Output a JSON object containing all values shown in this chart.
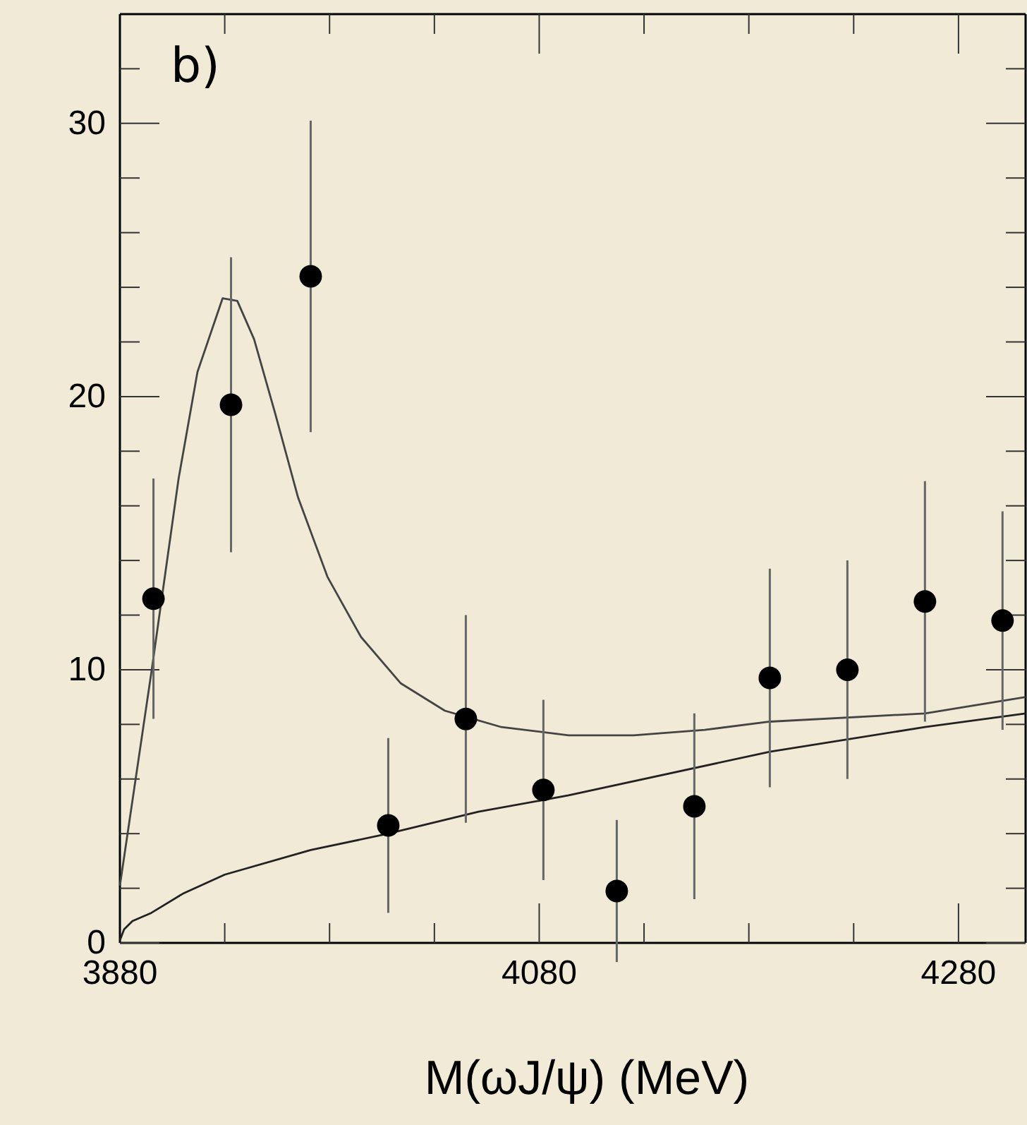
{
  "chart_data": {
    "type": "scatter",
    "xlabel": "M(ωJ/ψ) (MeV)",
    "annotations": [
      "b)"
    ],
    "xlim": [
      3880,
      4312
    ],
    "ylim": [
      0,
      34
    ],
    "xticks": [
      3880,
      {
        "value": 3930,
        "label": null
      },
      {
        "value": 3980,
        "label": null
      },
      {
        "value": 4030,
        "label": null
      },
      4080,
      {
        "value": 4130,
        "label": null
      },
      {
        "value": 4180,
        "label": null
      },
      {
        "value": 4230,
        "label": null
      },
      4280
    ],
    "yticks": [
      0,
      {
        "value": 2,
        "label": null
      },
      {
        "value": 4,
        "label": null
      },
      {
        "value": 6,
        "label": null
      },
      {
        "value": 8,
        "label": null
      },
      10,
      {
        "value": 12,
        "label": null
      },
      {
        "value": 14,
        "label": null
      },
      {
        "value": 16,
        "label": null
      },
      {
        "value": 18,
        "label": null
      },
      20,
      {
        "value": 22,
        "label": null
      },
      {
        "value": 24,
        "label": null
      },
      {
        "value": 26,
        "label": null
      },
      {
        "value": 28,
        "label": null
      },
      30,
      {
        "value": 32,
        "label": null
      }
    ],
    "grid": false,
    "series": [
      {
        "color": "#000000",
        "marker": "circle",
        "x": [
          3896,
          3933,
          3971,
          4008,
          4045,
          4082,
          4117,
          4154,
          4190,
          4227,
          4264,
          4301
        ],
        "values": [
          12.6,
          19.7,
          24.4,
          4.3,
          8.2,
          5.6,
          1.9,
          5.0,
          9.7,
          10.0,
          12.5,
          11.8
        ],
        "errors": [
          4.4,
          5.4,
          5.7,
          3.2,
          3.8,
          3.3,
          2.6,
          3.4,
          4.0,
          4.0,
          4.4,
          4.0
        ]
      },
      {
        "type": "line",
        "color": "#444444",
        "line_style": "solid",
        "marker": "none",
        "x": [
          3880,
          3895,
          3908,
          3917,
          3929,
          3936,
          3944,
          3954,
          3965,
          3979,
          3995,
          4014,
          4035,
          4062,
          4094,
          4125,
          4159,
          4190,
          4264,
          4312
        ],
        "values": [
          2.1,
          9.9,
          17.0,
          20.9,
          23.6,
          23.5,
          22.1,
          19.4,
          16.3,
          13.4,
          11.2,
          9.5,
          8.5,
          7.9,
          7.6,
          7.6,
          7.8,
          8.1,
          8.4,
          9.0
        ]
      },
      {
        "type": "line",
        "color": "#222222",
        "line_style": "solid",
        "marker": "none",
        "x": [
          3880,
          3882,
          3886,
          3895,
          3910,
          3930,
          3971,
          4008,
          4051,
          4094,
          4190,
          4264,
          4312
        ],
        "values": [
          0.1,
          0.5,
          0.8,
          1.1,
          1.8,
          2.5,
          3.4,
          4.0,
          4.8,
          5.4,
          7.0,
          7.9,
          8.4
        ]
      }
    ]
  }
}
